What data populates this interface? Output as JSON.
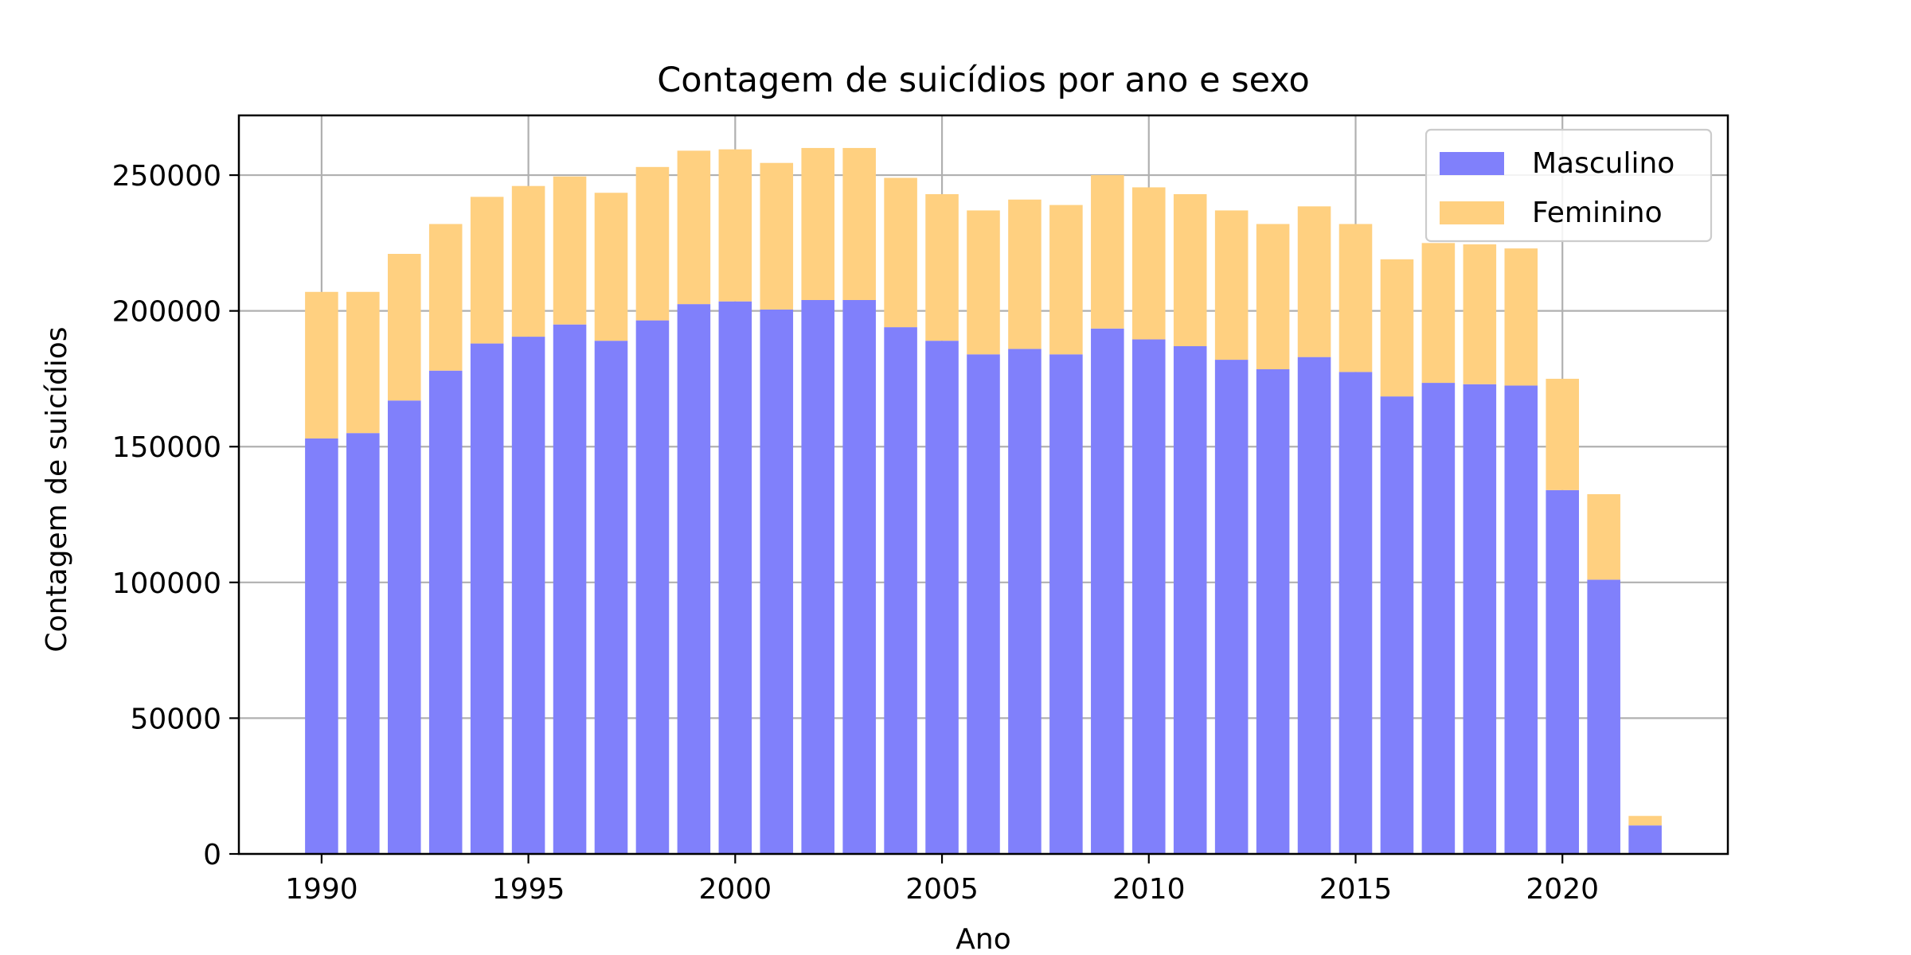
{
  "chart_data": {
    "type": "bar",
    "stacked": true,
    "title": "Contagem de suicídios por ano e sexo",
    "xlabel": "Ano",
    "ylabel": "Contagem de suicídios",
    "x": [
      1990,
      1991,
      1992,
      1993,
      1994,
      1995,
      1996,
      1997,
      1998,
      1999,
      2000,
      2001,
      2002,
      2003,
      2004,
      2005,
      2006,
      2007,
      2008,
      2009,
      2010,
      2011,
      2012,
      2013,
      2014,
      2015,
      2016,
      2017,
      2018,
      2019,
      2020,
      2021,
      2022
    ],
    "series": [
      {
        "name": "Masculino",
        "color": "#8080fb",
        "values": [
          153000,
          155000,
          167000,
          178000,
          188000,
          190500,
          195000,
          189000,
          196500,
          202500,
          203500,
          200500,
          204000,
          204000,
          194000,
          189000,
          184000,
          186000,
          184000,
          193500,
          189500,
          187000,
          182000,
          178500,
          183000,
          177500,
          168500,
          173500,
          173000,
          172500,
          134000,
          101000,
          10500
        ]
      },
      {
        "name": "Feminino",
        "color": "#ffd080",
        "values": [
          54000,
          52000,
          54000,
          54000,
          54000,
          55500,
          54500,
          54500,
          56500,
          56500,
          56000,
          54000,
          56000,
          56000,
          55000,
          54000,
          53000,
          55000,
          55000,
          56500,
          56000,
          56000,
          55000,
          53500,
          55500,
          54500,
          50500,
          51500,
          51500,
          50500,
          41000,
          31500,
          3500
        ]
      }
    ],
    "xticks": [
      1990,
      1995,
      2000,
      2005,
      2010,
      2015,
      2020
    ],
    "yticks": [
      0,
      50000,
      100000,
      150000,
      200000,
      250000
    ],
    "xlim": [
      1988,
      2024
    ],
    "ylim": [
      0,
      272000
    ],
    "grid": true,
    "legend_position": "top-right"
  }
}
